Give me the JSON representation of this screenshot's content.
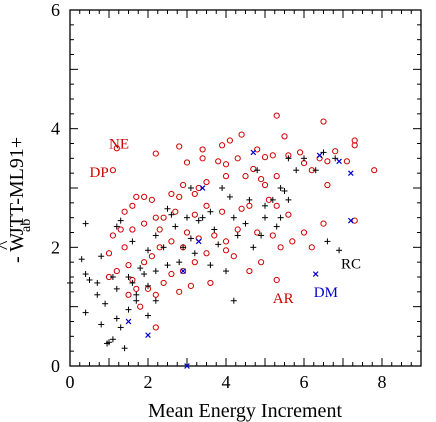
{
  "chart_data": {
    "type": "scatter",
    "title": "",
    "xlabel": "Mean Energy Increment",
    "ylabel_main": "JTT-ML91+",
    "ylabel_prefix": "- W",
    "ylabel_hat": "^",
    "ylabel_sub": "ab",
    "xlim": [
      0,
      9
    ],
    "ylim": [
      0,
      6
    ],
    "xticks": [
      0,
      2,
      4,
      6,
      8
    ],
    "yticks": [
      0,
      2,
      4,
      6
    ],
    "grid": false,
    "colors": {
      "red_circle": "#d00000",
      "black_plus": "#000000",
      "blue_cross": "#0000cc"
    },
    "annotations": [
      {
        "text": "NE",
        "x": 1.0,
        "y": 3.75,
        "color": "#d00000"
      },
      {
        "text": "DP",
        "x": 0.5,
        "y": 3.27,
        "color": "#d00000",
        "marker_x": 1.1,
        "marker_y": 3.3
      },
      {
        "text": "RC",
        "x": 6.95,
        "y": 1.73,
        "color": "#000000"
      },
      {
        "text": "AR",
        "x": 5.2,
        "y": 1.15,
        "color": "#d00000"
      },
      {
        "text": "DM",
        "x": 6.25,
        "y": 1.25,
        "color": "#0000cc"
      }
    ],
    "series": [
      {
        "marker": "circle",
        "color": "#d00000",
        "points": [
          [
            1.2,
            3.67
          ],
          [
            1.1,
            3.3
          ],
          [
            5.3,
            4.22
          ],
          [
            6.5,
            4.12
          ],
          [
            5.5,
            3.87
          ],
          [
            4.4,
            3.9
          ],
          [
            3.9,
            3.72
          ],
          [
            4.1,
            3.8
          ],
          [
            7.3,
            3.8
          ],
          [
            7.3,
            3.72
          ],
          [
            6.8,
            3.62
          ],
          [
            4.8,
            3.65
          ],
          [
            4.3,
            3.5
          ],
          [
            2.2,
            3.58
          ],
          [
            2.8,
            3.7
          ],
          [
            3.4,
            3.65
          ],
          [
            3.0,
            3.43
          ],
          [
            3.4,
            3.5
          ],
          [
            3.8,
            3.45
          ],
          [
            4.0,
            3.4
          ],
          [
            4.7,
            3.32
          ],
          [
            5.0,
            3.52
          ],
          [
            5.2,
            3.55
          ],
          [
            5.6,
            3.55
          ],
          [
            5.9,
            3.6
          ],
          [
            6.4,
            3.5
          ],
          [
            6.6,
            3.45
          ],
          [
            7.1,
            3.45
          ],
          [
            7.8,
            3.3
          ],
          [
            6.6,
            3.05
          ],
          [
            6.2,
            3.3
          ],
          [
            6.0,
            3.42
          ],
          [
            5.3,
            3.2
          ],
          [
            4.9,
            3.15
          ],
          [
            4.5,
            3.2
          ],
          [
            4.0,
            3.2
          ],
          [
            3.5,
            3.1
          ],
          [
            3.3,
            3.0
          ],
          [
            3.2,
            2.9
          ],
          [
            2.9,
            3.05
          ],
          [
            2.8,
            2.85
          ],
          [
            2.6,
            2.9
          ],
          [
            1.7,
            2.85
          ],
          [
            1.9,
            2.85
          ],
          [
            2.1,
            2.8
          ],
          [
            1.6,
            2.7
          ],
          [
            1.4,
            2.6
          ],
          [
            5.0,
            3.05
          ],
          [
            5.1,
            2.8
          ],
          [
            4.6,
            2.7
          ],
          [
            4.4,
            2.65
          ],
          [
            3.9,
            2.6
          ],
          [
            3.5,
            2.7
          ],
          [
            3.2,
            2.55
          ],
          [
            2.7,
            2.6
          ],
          [
            2.4,
            2.5
          ],
          [
            2.2,
            2.5
          ],
          [
            2.3,
            2.3
          ],
          [
            1.9,
            2.4
          ],
          [
            1.6,
            2.3
          ],
          [
            1.3,
            2.3
          ],
          [
            1.1,
            2.2
          ],
          [
            1.4,
            2.0
          ],
          [
            1.0,
            1.9
          ],
          [
            6.5,
            2.4
          ],
          [
            6.0,
            2.25
          ],
          [
            5.6,
            2.55
          ],
          [
            5.3,
            2.7
          ],
          [
            5.2,
            2.2
          ],
          [
            4.8,
            2.25
          ],
          [
            4.3,
            2.3
          ],
          [
            4.0,
            2.1
          ],
          [
            3.7,
            2.2
          ],
          [
            3.3,
            2.15
          ],
          [
            3.0,
            2.25
          ],
          [
            2.9,
            2.0
          ],
          [
            2.6,
            2.1
          ],
          [
            2.3,
            2.0
          ],
          [
            2.1,
            1.85
          ],
          [
            1.9,
            1.75
          ],
          [
            1.5,
            1.7
          ],
          [
            1.2,
            1.6
          ],
          [
            1.0,
            1.5
          ],
          [
            5.3,
            1.45
          ],
          [
            4.6,
            1.6
          ],
          [
            4.2,
            1.85
          ],
          [
            4.0,
            1.95
          ],
          [
            3.5,
            1.9
          ],
          [
            3.2,
            1.75
          ],
          [
            2.9,
            1.6
          ],
          [
            2.6,
            1.55
          ],
          [
            2.4,
            1.4
          ],
          [
            2.2,
            1.2
          ],
          [
            2.0,
            1.3
          ],
          [
            1.7,
            1.3
          ],
          [
            1.5,
            1.2
          ],
          [
            2.8,
            1.25
          ],
          [
            3.1,
            1.35
          ],
          [
            3.6,
            1.4
          ],
          [
            2.2,
            0.65
          ],
          [
            1.8,
            1.0
          ],
          [
            1.6,
            1.45
          ],
          [
            4.9,
            1.75
          ],
          [
            5.4,
            2.0
          ],
          [
            5.7,
            2.1
          ],
          [
            6.2,
            2.0
          ],
          [
            7.3,
            2.45
          ]
        ]
      },
      {
        "marker": "plus",
        "color": "#000000",
        "points": [
          [
            0.0,
            1.4
          ],
          [
            0.3,
            1.8
          ],
          [
            0.4,
            1.55
          ],
          [
            0.5,
            1.45
          ],
          [
            0.7,
            1.4
          ],
          [
            0.7,
            1.2
          ],
          [
            0.4,
            0.9
          ],
          [
            0.8,
            0.7
          ],
          [
            1.0,
            0.4
          ],
          [
            0.95,
            0.38
          ],
          [
            1.1,
            0.45
          ],
          [
            0.9,
            1.05
          ],
          [
            1.2,
            0.8
          ],
          [
            1.4,
            0.3
          ],
          [
            1.5,
            0.95
          ],
          [
            1.3,
            0.65
          ],
          [
            1.7,
            1.1
          ],
          [
            1.6,
            1.4
          ],
          [
            1.1,
            1.5
          ],
          [
            1.2,
            1.3
          ],
          [
            1.5,
            1.5
          ],
          [
            1.8,
            1.65
          ],
          [
            2.0,
            1.95
          ],
          [
            1.6,
            2.1
          ],
          [
            1.3,
            2.45
          ],
          [
            1.2,
            2.35
          ],
          [
            0.4,
            2.4
          ],
          [
            0.8,
            1.85
          ],
          [
            2.0,
            1.35
          ],
          [
            2.2,
            1.1
          ],
          [
            2.2,
            2.2
          ],
          [
            2.4,
            2.0
          ],
          [
            2.5,
            2.65
          ],
          [
            2.7,
            2.35
          ],
          [
            2.9,
            2.0
          ],
          [
            3.1,
            2.15
          ],
          [
            3.0,
            2.5
          ],
          [
            3.1,
            3.0
          ],
          [
            3.4,
            2.5
          ],
          [
            3.6,
            2.6
          ],
          [
            3.7,
            2.3
          ],
          [
            3.8,
            2.05
          ],
          [
            3.9,
            3.0
          ],
          [
            4.2,
            2.5
          ],
          [
            4.3,
            2.2
          ],
          [
            4.5,
            2.4
          ],
          [
            4.6,
            2.8
          ],
          [
            4.8,
            3.3
          ],
          [
            4.7,
            2.0
          ],
          [
            5.0,
            2.5
          ],
          [
            5.2,
            2.8
          ],
          [
            5.4,
            3.0
          ],
          [
            5.5,
            2.95
          ],
          [
            5.6,
            2.8
          ],
          [
            5.8,
            3.3
          ],
          [
            6.0,
            3.5
          ],
          [
            6.3,
            3.3
          ],
          [
            6.5,
            3.6
          ],
          [
            6.8,
            3.5
          ],
          [
            5.0,
            2.7
          ],
          [
            5.4,
            2.5
          ],
          [
            4.0,
            1.6
          ],
          [
            3.6,
            1.7
          ],
          [
            3.2,
            1.9
          ],
          [
            2.8,
            1.75
          ],
          [
            2.5,
            1.7
          ],
          [
            2.2,
            1.6
          ],
          [
            1.9,
            1.55
          ],
          [
            1.7,
            1.2
          ],
          [
            2.0,
            0.85
          ],
          [
            4.2,
            1.1
          ],
          [
            5.6,
            3.5
          ],
          [
            6.6,
            2.1
          ],
          [
            6.9,
            1.95
          ],
          [
            4.1,
            2.85
          ],
          [
            3.3,
            2.45
          ],
          [
            2.6,
            2.55
          ],
          [
            4.9,
            2.2
          ],
          [
            5.3,
            2.35
          ]
        ]
      },
      {
        "marker": "cross",
        "color": "#0000cc",
        "points": [
          [
            3.0,
            0.0
          ],
          [
            2.0,
            0.52
          ],
          [
            1.5,
            0.75
          ],
          [
            2.9,
            1.6
          ],
          [
            3.3,
            2.1
          ],
          [
            3.4,
            3.0
          ],
          [
            4.7,
            3.6
          ],
          [
            6.4,
            3.55
          ],
          [
            6.9,
            3.45
          ],
          [
            7.2,
            3.25
          ],
          [
            7.2,
            2.45
          ],
          [
            6.3,
            1.55
          ]
        ]
      }
    ]
  }
}
